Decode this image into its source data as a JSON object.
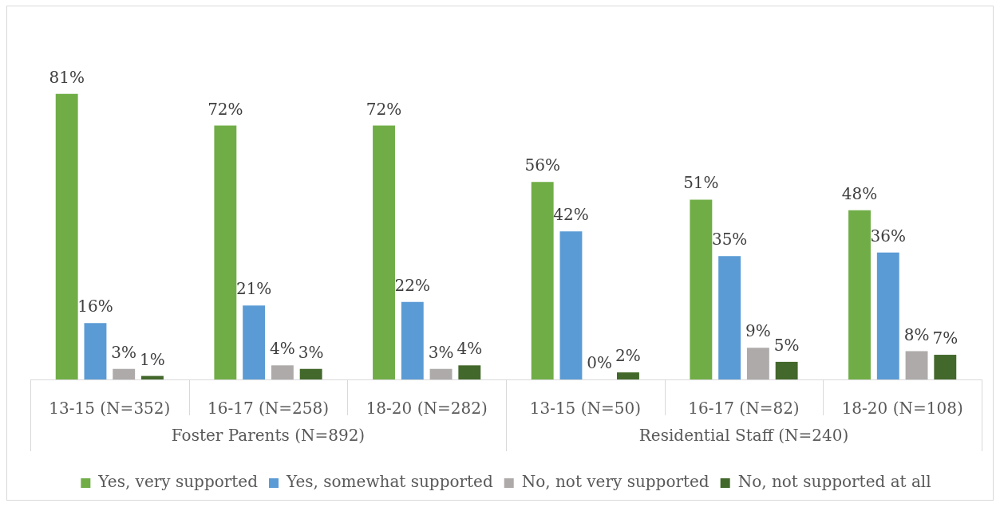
{
  "chart_data": {
    "type": "bar",
    "categories": [
      "13-15 (N=352)",
      "16-17 (N=258)",
      "18-20 (N=282)",
      "13-15 (N=50)",
      "16-17 (N=82)",
      "18-20 (N=108)"
    ],
    "series": [
      {
        "name": "Yes, very supported",
        "color": "#70ad47",
        "values": [
          81,
          72,
          72,
          56,
          51,
          48
        ],
        "value_labels": [
          "81%",
          "72%",
          "72%",
          "56%",
          "51%",
          "48%"
        ]
      },
      {
        "name": "Yes, somewhat supported",
        "color": "#5b9bd5",
        "values": [
          16,
          21,
          22,
          42,
          35,
          36
        ],
        "value_labels": [
          "16%",
          "21%",
          "22%",
          "42%",
          "35%",
          "36%"
        ]
      },
      {
        "name": "No, not very supported",
        "color": "#aeaaaa",
        "values": [
          3,
          4,
          3,
          0,
          9,
          8
        ],
        "value_labels": [
          "3%",
          "4%",
          "3%",
          "0%",
          "9%",
          "8%"
        ]
      },
      {
        "name": "No, not supported at all",
        "color": "#43682b",
        "values": [
          1,
          3,
          4,
          2,
          5,
          7
        ],
        "value_labels": [
          "1%",
          "3%",
          "4%",
          "2%",
          "5%",
          "7%"
        ]
      }
    ],
    "annotations": [
      "Foster Parents (N=892)",
      "Residential Staff (N=240)"
    ],
    "legend": "bottom"
  }
}
